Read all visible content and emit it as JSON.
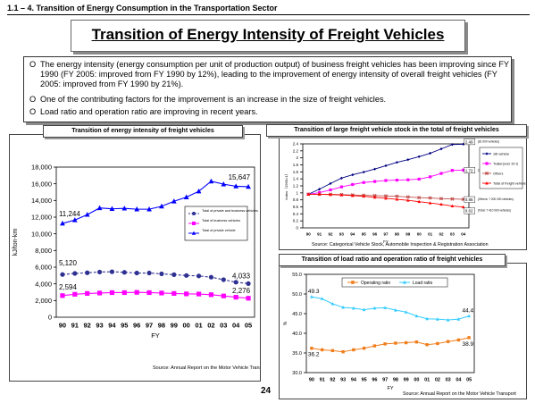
{
  "header": {
    "section": "1.1 – 4. Transition of Energy Consumption in the Transportation Sector",
    "title": "Transition of Energy Intensity of Freight Vehicles"
  },
  "bullets": [
    {
      "mark": "O",
      "text": "The energy intensity (energy consumption per unit of production output) of business freight vehicles has been improving since FY 1990 (FY 2005: improved from FY 1990 by 12%), leading to the improvement of energy intensity of overall freight vehicles (FY 2005: improved from FY 1990 by 21%)."
    },
    {
      "mark": "O",
      "text": "One of the contributing factors for the improvement is an increase in the size of freight vehicles."
    },
    {
      "mark": "O",
      "text": "Load ratio and operation ratio are improving in recent years."
    }
  ],
  "page_number": "24",
  "chart_data": [
    {
      "type": "line",
      "title": "Transition of energy intensity of freight vehicles",
      "xlabel": "FY",
      "ylabel": "kJ/ton-km",
      "categories": [
        "90",
        "91",
        "92",
        "93",
        "94",
        "95",
        "96",
        "97",
        "98",
        "99",
        "00",
        "01",
        "02",
        "03",
        "04",
        "05"
      ],
      "ylim": [
        0,
        18000
      ],
      "yticks": [
        "0",
        "2,000",
        "4,000",
        "6,000",
        "8,000",
        "10,000",
        "12,000",
        "14,000",
        "16,000",
        "18,000"
      ],
      "series": [
        {
          "name": "Total of private and business vehicles",
          "color": "#2e3192",
          "marker": "circle",
          "dashed": true,
          "values": [
            5120,
            5250,
            5330,
            5420,
            5450,
            5380,
            5300,
            5300,
            5200,
            5100,
            5000,
            4950,
            4800,
            4500,
            4200,
            4033
          ]
        },
        {
          "name": "Total of business vehicles",
          "color": "#ff00ff",
          "marker": "square",
          "values": [
            2594,
            2750,
            2850,
            2900,
            2950,
            2950,
            2980,
            2950,
            2900,
            2850,
            2800,
            2780,
            2700,
            2550,
            2400,
            2276
          ]
        },
        {
          "name": "Total of private vehicle",
          "color": "#0000ff",
          "marker": "triangle",
          "values": [
            11244,
            11650,
            12300,
            13100,
            13000,
            13050,
            12950,
            12950,
            13300,
            13900,
            14400,
            15100,
            16300,
            15950,
            15700,
            15647
          ]
        }
      ],
      "data_labels": [
        "11,244",
        "15,647",
        "5,120",
        "4,033",
        "2,594",
        "2,276"
      ],
      "legend_position": "right",
      "source": "Source:  Annual Report on the Motor Vehicle Transport"
    },
    {
      "type": "line",
      "title": "Transition of large freight vehicle stock in the total of freight vehicles",
      "ylabel": "Index（1990=1）",
      "xlabel": "FY",
      "categories": [
        "90",
        "91",
        "92",
        "93",
        "94",
        "95",
        "96",
        "97",
        "98",
        "99",
        "00",
        "01",
        "02",
        "03",
        "04"
      ],
      "ylim": [
        0,
        2.5
      ],
      "yticks": [
        "0",
        "0.2",
        "0.4",
        "0.6",
        "0.8",
        "1",
        "1.2",
        "1.4",
        "1.6",
        "1.8",
        "2",
        "2.2",
        "2.4"
      ],
      "series": [
        {
          "name": "16t vehicle",
          "color": "#000080",
          "marker": "diamond",
          "values": [
            1.0,
            1.15,
            1.32,
            1.48,
            1.58,
            1.66,
            1.75,
            1.85,
            1.95,
            2.03,
            2.12,
            2.22,
            2.35,
            2.48,
            2.49
          ]
        },
        {
          "name": "Trailer(over 20 t)",
          "color": "#ff00ff",
          "marker": "square",
          "values": [
            1.0,
            1.05,
            1.13,
            1.22,
            1.29,
            1.35,
            1.38,
            1.41,
            1.42,
            1.43,
            1.45,
            1.52,
            1.62,
            1.71,
            1.72
          ]
        },
        {
          "name": "Others",
          "color": "#c0504d",
          "marker": "x",
          "values": [
            1.0,
            1.0,
            1.0,
            0.99,
            0.98,
            0.97,
            0.96,
            0.95,
            0.94,
            0.92,
            0.9,
            0.89,
            0.87,
            0.86,
            0.85
          ]
        },
        {
          "name": "Total of freight vehicle",
          "color": "#ff0000",
          "marker": "triangle",
          "values": [
            1.0,
            1.0,
            0.99,
            0.98,
            0.96,
            0.94,
            0.91,
            0.88,
            0.85,
            0.82,
            0.78,
            0.74,
            0.7,
            0.65,
            0.62
          ]
        }
      ],
      "data_labels": [
        "2.49",
        "1.72",
        "0.85",
        "0.62"
      ],
      "label_notes": [
        "(81 000 vehicles)",
        "(38,000 vehicles)",
        "(Others: 7 200 000 vehicles)",
        "(Total: 7 410 000 vehicles)"
      ],
      "legend_position": "right",
      "source": "Source: Categorical Vehicle Stock, Automobile Inspection & Registration Association"
    },
    {
      "type": "line",
      "title": "Transition of load ratio and operation ratio of freight vehicles",
      "ylabel": "%",
      "xlabel": "FY",
      "categories": [
        "90",
        "91",
        "92",
        "93",
        "94",
        "95",
        "96",
        "97",
        "98",
        "99",
        "00",
        "01",
        "02",
        "03",
        "04",
        "05"
      ],
      "ylim": [
        30,
        55
      ],
      "yticks": [
        "30.0",
        "35.0",
        "40.0",
        "45.0",
        "50.0",
        "55.0"
      ],
      "series": [
        {
          "name": "Operating ratio",
          "color": "#f07d1a",
          "marker": "square",
          "values": [
            36.2,
            35.8,
            35.6,
            35.3,
            35.8,
            36.2,
            36.8,
            37.3,
            37.5,
            37.6,
            37.8,
            37.1,
            37.4,
            37.9,
            38.3,
            38.9
          ]
        },
        {
          "name": "Load ratio",
          "color": "#33ccff",
          "marker": "triangle",
          "values": [
            49.3,
            48.8,
            47.5,
            46.6,
            46.4,
            46.0,
            46.4,
            46.5,
            45.9,
            45.4,
            44.4,
            43.7,
            43.6,
            43.4,
            43.6,
            44.4
          ]
        }
      ],
      "data_labels": [
        "49.3",
        "44.4",
        "36.2",
        "38.9"
      ],
      "legend_position": "top",
      "source": "Source: Annual Report on the Motor Vehicle Transport"
    }
  ]
}
